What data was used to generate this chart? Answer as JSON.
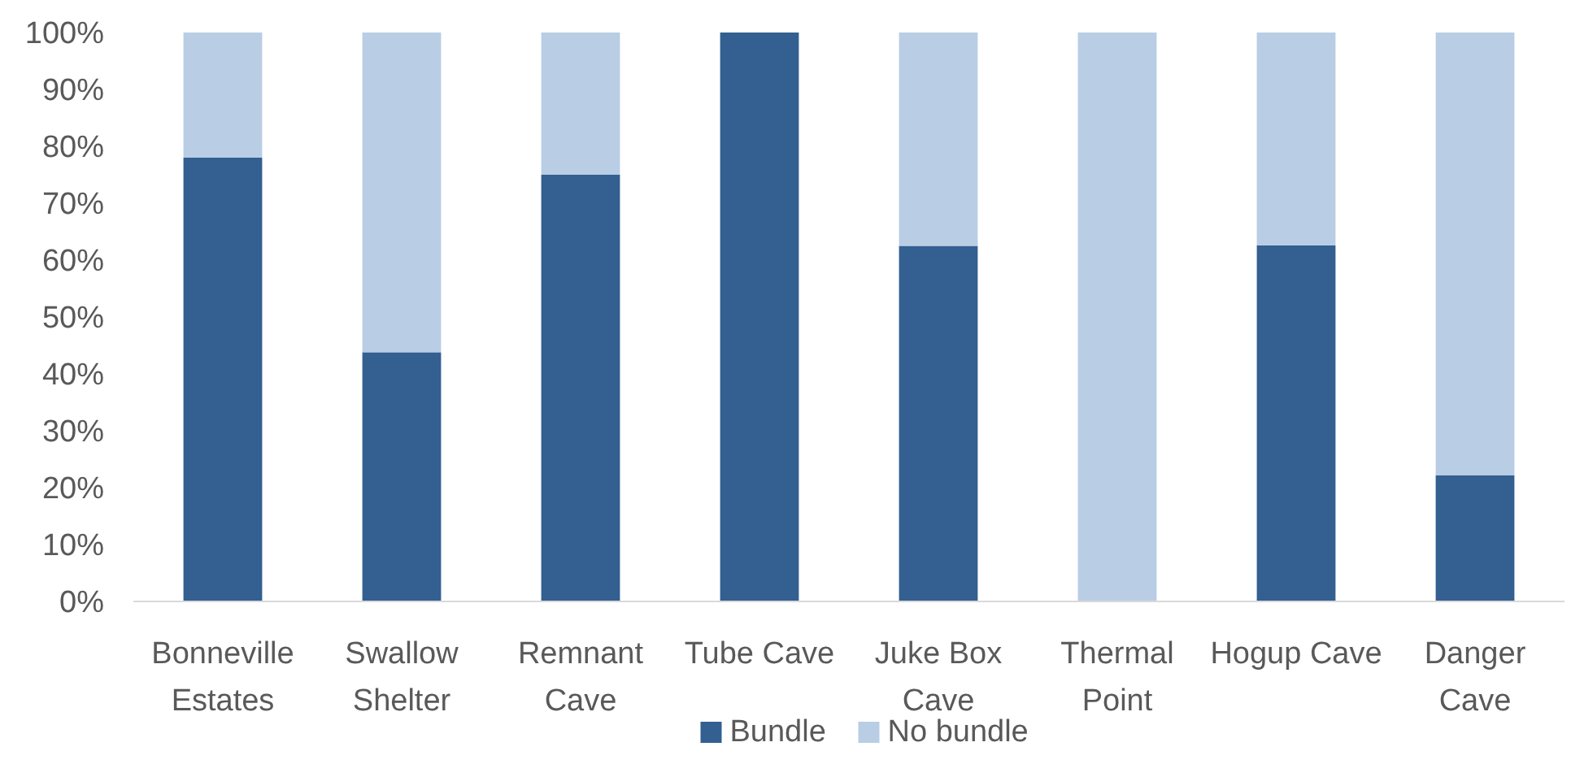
{
  "chart_data": {
    "type": "bar",
    "stacked": true,
    "categories": [
      "Bonneville Estates",
      "Swallow Shelter",
      "Remnant Cave",
      "Tube Cave",
      "Juke Box Cave",
      "Thermal Point",
      "Hogup Cave",
      "Danger Cave"
    ],
    "series": [
      {
        "name": "Bundle",
        "color": "#335f91",
        "values": [
          78,
          43.8,
          75,
          100,
          62.5,
          0,
          62.6,
          22.2
        ]
      },
      {
        "name": "No bundle",
        "color": "#b9cde5",
        "values": [
          22,
          56.2,
          25,
          0,
          37.5,
          100,
          37.4,
          77.8
        ]
      }
    ],
    "ylim": [
      0,
      100
    ],
    "yticks": [
      {
        "value": 0,
        "label": "0%"
      },
      {
        "value": 10,
        "label": "10%"
      },
      {
        "value": 20,
        "label": "20%"
      },
      {
        "value": 30,
        "label": "30%"
      },
      {
        "value": 40,
        "label": "40%"
      },
      {
        "value": 50,
        "label": "50%"
      },
      {
        "value": 60,
        "label": "60%"
      },
      {
        "value": 70,
        "label": "70%"
      },
      {
        "value": 80,
        "label": "80%"
      },
      {
        "value": 90,
        "label": "90%"
      },
      {
        "value": 100,
        "label": "100%"
      }
    ],
    "grid": false,
    "legend": "bottom"
  }
}
